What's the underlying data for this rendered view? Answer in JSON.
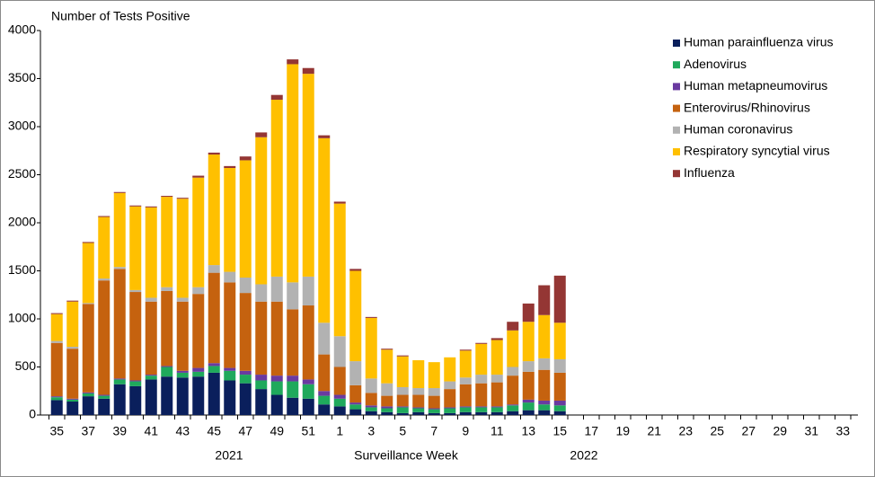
{
  "chart_data": {
    "type": "stacked_bar",
    "y_axis_label": "Number of Tests Positive",
    "x_axis_label": "Surveillance Week",
    "annotations": [
      "2021",
      "2022"
    ],
    "categories": [
      35,
      null,
      37,
      null,
      39,
      null,
      41,
      null,
      43,
      null,
      45,
      null,
      47,
      null,
      49,
      null,
      51,
      null,
      1,
      null,
      3,
      null,
      5,
      null,
      7,
      null,
      9,
      null,
      11,
      null,
      13,
      null,
      15,
      null,
      17,
      null,
      19,
      null,
      21,
      null,
      23,
      null,
      25,
      null,
      27,
      null,
      29,
      null,
      31,
      null,
      33,
      null
    ],
    "series": [
      {
        "name": "Human parainfluenza virus",
        "color": "#0a1f5c",
        "values": [
          155,
          140,
          195,
          170,
          320,
          300,
          370,
          400,
          390,
          400,
          440,
          360,
          330,
          270,
          210,
          180,
          170,
          110,
          90,
          60,
          40,
          30,
          20,
          30,
          20,
          20,
          30,
          30,
          30,
          40,
          50,
          50,
          40,
          null,
          null,
          null,
          null,
          null,
          null,
          null,
          null,
          null,
          null,
          null,
          null,
          null,
          null,
          null,
          null,
          null,
          null,
          null
        ]
      },
      {
        "name": "Adenovirus",
        "color": "#1fa95c",
        "values": [
          30,
          20,
          30,
          30,
          50,
          50,
          40,
          100,
          50,
          50,
          70,
          100,
          90,
          90,
          140,
          170,
          150,
          90,
          80,
          50,
          40,
          40,
          60,
          40,
          40,
          50,
          50,
          50,
          50,
          60,
          80,
          60,
          60,
          null,
          null,
          null,
          null,
          null,
          null,
          null,
          null,
          null,
          null,
          null,
          null,
          null,
          null,
          null,
          null,
          null,
          null,
          null
        ]
      },
      {
        "name": "Human metapneumovirus",
        "color": "#6a3aa0",
        "values": [
          10,
          10,
          10,
          10,
          10,
          10,
          10,
          10,
          20,
          40,
          30,
          30,
          40,
          60,
          60,
          60,
          50,
          50,
          40,
          20,
          20,
          20,
          10,
          10,
          10,
          10,
          10,
          10,
          10,
          10,
          30,
          40,
          50,
          null,
          null,
          null,
          null,
          null,
          null,
          null,
          null,
          null,
          null,
          null,
          null,
          null,
          null,
          null,
          null,
          null,
          null,
          null
        ]
      },
      {
        "name": "Enterovirus/Rhinovirus",
        "color": "#c5620f",
        "values": [
          555,
          520,
          920,
          1190,
          1140,
          920,
          760,
          780,
          720,
          770,
          940,
          890,
          810,
          760,
          770,
          690,
          770,
          380,
          290,
          180,
          130,
          110,
          120,
          130,
          130,
          190,
          230,
          240,
          250,
          300,
          290,
          320,
          290,
          null,
          null,
          null,
          null,
          null,
          null,
          null,
          null,
          null,
          null,
          null,
          null,
          null,
          null,
          null,
          null,
          null,
          null,
          null
        ]
      },
      {
        "name": "Human coronavirus",
        "color": "#b2b2b2",
        "values": [
          20,
          20,
          10,
          20,
          20,
          20,
          40,
          40,
          40,
          70,
          80,
          110,
          160,
          180,
          260,
          280,
          300,
          330,
          320,
          250,
          150,
          130,
          80,
          70,
          80,
          80,
          70,
          90,
          80,
          90,
          110,
          120,
          140,
          null,
          null,
          null,
          null,
          null,
          null,
          null,
          null,
          null,
          null,
          null,
          null,
          null,
          null,
          null,
          null,
          null,
          null,
          null
        ]
      },
      {
        "name": "Respiratory syncytial virus",
        "color": "#ffc000",
        "values": [
          280,
          470,
          625,
          640,
          770,
          870,
          940,
          940,
          1030,
          1140,
          1150,
          1080,
          1220,
          1530,
          1840,
          2270,
          2110,
          1920,
          1380,
          940,
          630,
          350,
          320,
          290,
          270,
          250,
          280,
          320,
          360,
          380,
          410,
          450,
          380,
          null,
          null,
          null,
          null,
          null,
          null,
          null,
          null,
          null,
          null,
          null,
          null,
          null,
          null,
          null,
          null,
          null,
          null,
          null
        ]
      },
      {
        "name": "Influenza",
        "color": "#943634",
        "values": [
          10,
          10,
          10,
          10,
          10,
          10,
          10,
          10,
          10,
          20,
          20,
          20,
          40,
          50,
          50,
          50,
          60,
          30,
          20,
          20,
          10,
          10,
          10,
          0,
          0,
          0,
          10,
          10,
          20,
          90,
          190,
          310,
          490,
          null,
          null,
          null,
          null,
          null,
          null,
          null,
          null,
          null,
          null,
          null,
          null,
          null,
          null,
          null,
          null,
          null,
          null,
          null
        ]
      }
    ],
    "ylim": [
      0,
      4000
    ],
    "yticks": [
      0,
      500,
      1000,
      1500,
      2000,
      2500,
      3000,
      3500,
      4000
    ],
    "legend": "top-right"
  }
}
